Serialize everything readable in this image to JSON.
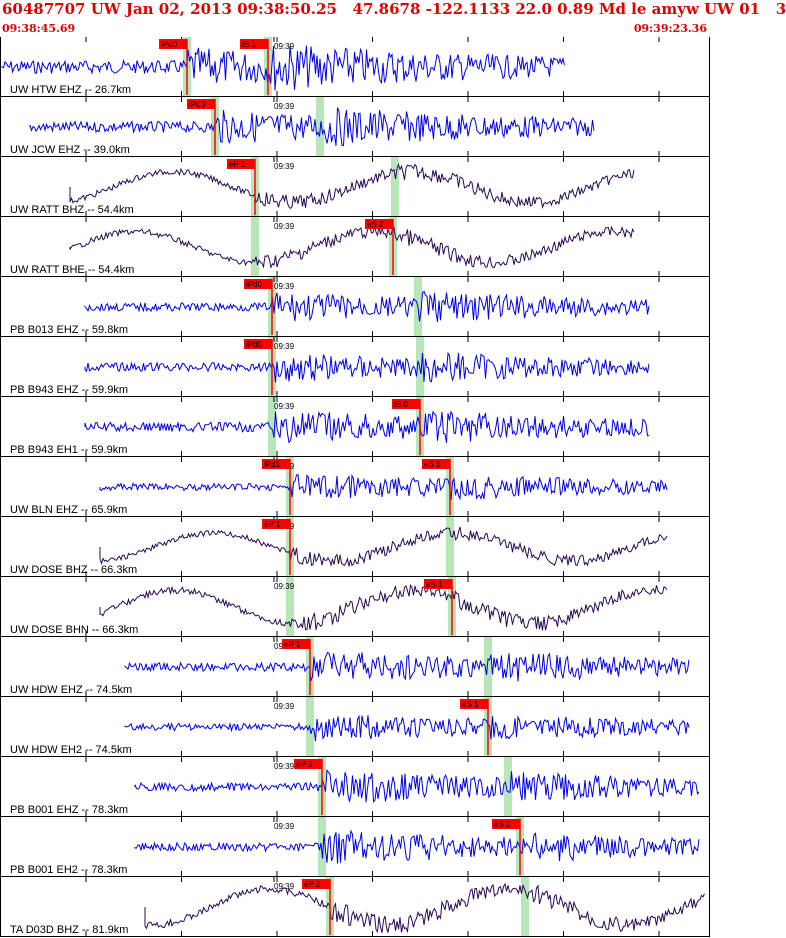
{
  "header": {
    "title": "60487707 UW Jan 02, 2013 09:38:50.25   47.8678 -122.1133 22.0 0.89 Md le amyw UW 01   3",
    "time_start": "09:38:45.69",
    "time_end": "09:39:23.36"
  },
  "minute_label": "09:39",
  "colors": {
    "blue": "#0000e6",
    "dark": "#2a0a55",
    "pick": "#ff0000",
    "band": "#b8e6b8"
  },
  "traces": [
    {
      "label": "UW HTW EHZ -- 26.7km",
      "color": "blue",
      "p_label": "iPd0",
      "s_label": "iS 1"
    },
    {
      "label": "UW JCW EHZ -- 39.0km",
      "color": "blue",
      "p_label": "iPd0",
      "s_label": ""
    },
    {
      "label": "UW RATT BHZ -- 54.4km",
      "color": "dark",
      "p_label": "eP 1",
      "s_label": ""
    },
    {
      "label": "UW RATT BHE -- 54.4km",
      "color": "dark",
      "p_label": "",
      "s_label": "eS 2"
    },
    {
      "label": "PB B013 EHZ -- 59.8km",
      "color": "blue",
      "p_label": "iPd0",
      "s_label": ""
    },
    {
      "label": "PB B943 EHZ -- 59.9km",
      "color": "blue",
      "p_label": "iPd0",
      "s_label": ""
    },
    {
      "label": "PB B943 EH1 -- 59.9km",
      "color": "blue",
      "p_label": "",
      "s_label": "iS 0"
    },
    {
      "label": "UW BLN EHZ -- 65.9km",
      "color": "blue",
      "p_label": "iPd1",
      "s_label": "eS 1"
    },
    {
      "label": "UW DOSE BHZ -- 66.3km",
      "color": "dark",
      "p_label": "eP 1",
      "s_label": ""
    },
    {
      "label": "UW DOSE BHN -- 66.3km",
      "color": "dark",
      "p_label": "",
      "s_label": "eS 1"
    },
    {
      "label": "UW HDW EHZ -- 74.5km",
      "color": "blue",
      "p_label": "eP 1",
      "s_label": ""
    },
    {
      "label": "UW HDW EH2 -- 74.5km",
      "color": "blue",
      "p_label": "",
      "s_label": "eS 1"
    },
    {
      "label": "PB B001 EHZ -- 78.3km",
      "color": "blue",
      "p_label": "eP 2",
      "s_label": ""
    },
    {
      "label": "PB B001 EH2 -- 78.3km",
      "color": "blue",
      "p_label": "",
      "s_label": "eS 2"
    },
    {
      "label": "TA D03D BHZ -- 81.9km",
      "color": "dark",
      "p_label": "eP 2",
      "s_label": ""
    }
  ]
}
